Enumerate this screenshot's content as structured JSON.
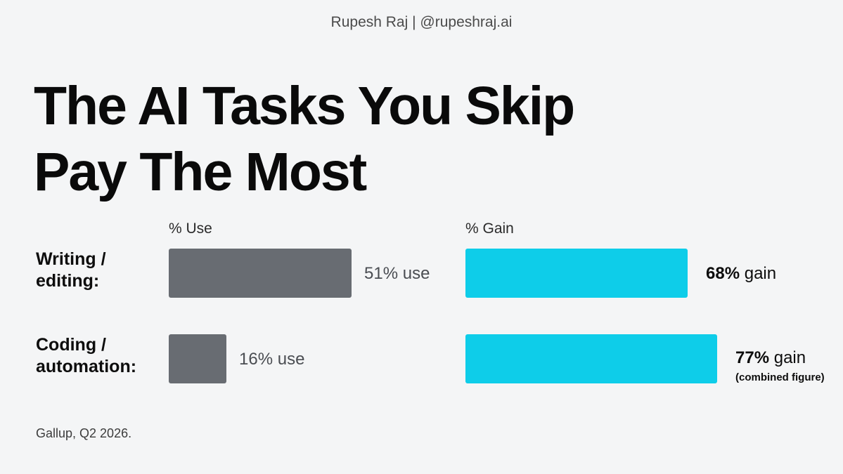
{
  "byline": "Rupesh Raj | @rupeshraj.ai",
  "title_lines": [
    "The AI Tasks You Skip",
    "Pay The Most"
  ],
  "source": "Gallup, Q2 2026.",
  "colors": {
    "use_bar": "#686c72",
    "gain_bar": "#0ecde9",
    "background": "#f4f5f6"
  },
  "chart_data": {
    "type": "bar",
    "orientation": "horizontal",
    "categories": [
      [
        "Writing /",
        "editing:"
      ],
      [
        "Coding /",
        "automation:"
      ]
    ],
    "series": [
      {
        "name": "% Use",
        "values": [
          51,
          16
        ],
        "value_suffix": "use"
      },
      {
        "name": "% Gain",
        "values": [
          68,
          77
        ],
        "value_suffix": "gain"
      }
    ],
    "annotations": [
      {
        "category_index": 1,
        "series_index": 1,
        "text": "(combined figure)"
      }
    ]
  }
}
